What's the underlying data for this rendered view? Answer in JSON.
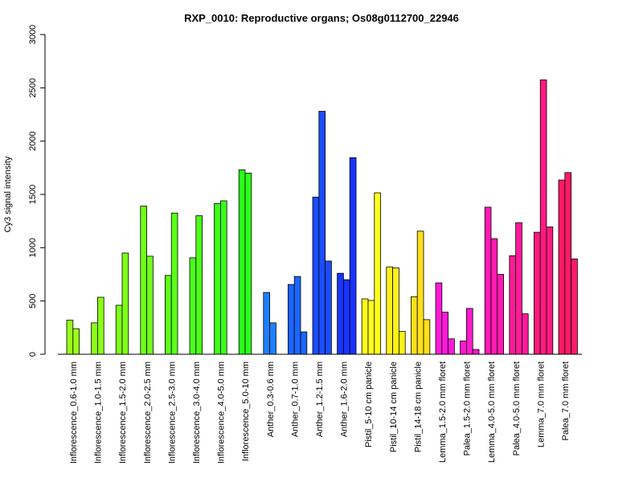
{
  "chart_data": {
    "type": "bar",
    "title": "RXP_0010: Reproductive organs; Os08g0112700_22946",
    "xlabel": "",
    "ylabel": "Cy3 signal intensity",
    "ylim": [
      0,
      3000
    ],
    "yticks": [
      0,
      500,
      1000,
      1500,
      2000,
      2500,
      3000
    ],
    "grid": false,
    "legend": "none",
    "categories": [
      {
        "label": "Inflorescence_0.6-1.0 mm",
        "color": "#99ff1a",
        "values": [
          320,
          240
        ]
      },
      {
        "label": "Inflorescence_1.0-1.5 mm",
        "color": "#8cff1a",
        "values": [
          295,
          535
        ]
      },
      {
        "label": "Inflorescence_1.5-2.0 mm",
        "color": "#7fff1a",
        "values": [
          460,
          950
        ]
      },
      {
        "label": "Inflorescence_2.0-2.5 mm",
        "color": "#70ff1a",
        "values": [
          1390,
          920
        ]
      },
      {
        "label": "Inflorescence_2.5-3.0 mm",
        "color": "#5cff1a",
        "values": [
          740,
          1325
        ]
      },
      {
        "label": "Inflorescence_3.0-4.0 mm",
        "color": "#4dff1a",
        "values": [
          905,
          1300
        ]
      },
      {
        "label": "Inflorescence_4.0-5.0 mm",
        "color": "#3dff1a",
        "values": [
          1415,
          1440
        ]
      },
      {
        "label": "Inflorescence_5.0-10 mm",
        "color": "#2bff1a",
        "values": [
          1730,
          1700
        ]
      },
      {
        "label": "Anther_0.3-0.6 mm",
        "color": "#1a80ff",
        "values": [
          580,
          295
        ]
      },
      {
        "label": "Anther_0.7-1.0 mm",
        "color": "#1a66ff",
        "values": [
          655,
          730,
          210
        ]
      },
      {
        "label": "Anther_1.2-1.5 mm",
        "color": "#1a4dff",
        "values": [
          1475,
          2280,
          875
        ]
      },
      {
        "label": "Anther_1.6-2.0 mm",
        "color": "#1a33ff",
        "values": [
          760,
          700,
          1845
        ]
      },
      {
        "label": "Pistil_5-10 cm panicle",
        "color": "#ffff1a",
        "values": [
          520,
          505,
          1515
        ]
      },
      {
        "label": "Pistil_10-14 cm panicle",
        "color": "#fff01a",
        "values": [
          820,
          810,
          215
        ]
      },
      {
        "label": "Pistil_14-18 cm panicle",
        "color": "#ffe01a",
        "values": [
          540,
          1155,
          325
        ]
      },
      {
        "label": "Lemma_1.5-2.0 mm floret",
        "color": "#ff1ad9",
        "values": [
          670,
          395,
          145
        ]
      },
      {
        "label": "Palea_1.5-2.0 mm floret",
        "color": "#ff1acc",
        "values": [
          125,
          430,
          45
        ]
      },
      {
        "label": "Lemma_4.0-5.0 mm floret",
        "color": "#ff1ab3",
        "values": [
          1380,
          1085,
          750
        ]
      },
      {
        "label": "Palea_4.0-5.0 mm floret",
        "color": "#ff1a99",
        "values": [
          925,
          1235,
          380
        ]
      },
      {
        "label": "Lemma_7.0 mm floret",
        "color": "#ff1a80",
        "values": [
          1145,
          2575,
          1195
        ]
      },
      {
        "label": "Palea_7.0 mm floret",
        "color": "#ff1a66",
        "values": [
          1635,
          1705,
          895
        ]
      }
    ]
  }
}
